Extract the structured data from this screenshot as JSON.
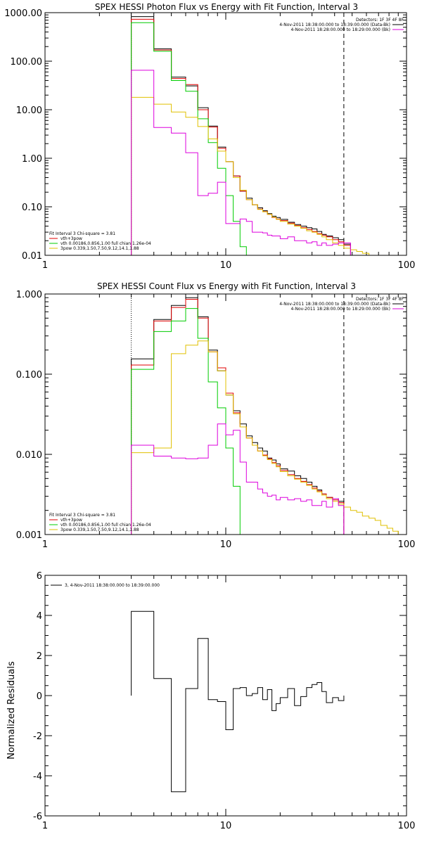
{
  "chart_data": [
    {
      "type": "line",
      "step": true,
      "title": "SPEX HESSI Photon Flux vs Energy with Fit Function, Interval 3",
      "xlabel": "",
      "ylabel": "",
      "xscale": "log",
      "yscale": "log",
      "xlim": [
        1,
        100
      ],
      "ylim": [
        0.01,
        1000
      ],
      "xticks": [
        "1",
        "10",
        "100"
      ],
      "yticks": [
        "0.01",
        "0.10",
        "1.00",
        "10.00",
        "100.00",
        "1000.00"
      ],
      "energy_edges": [
        3,
        4,
        5,
        6,
        7,
        8,
        9,
        10,
        11,
        12,
        13,
        14,
        15,
        16,
        17,
        18,
        19,
        20,
        22,
        24,
        26,
        28,
        30,
        32,
        34,
        36,
        39,
        42,
        45,
        49,
        53,
        57,
        62,
        67
      ],
      "series": [
        {
          "name": "Data",
          "color": "#000000",
          "values": [
            830,
            180,
            47,
            31,
            11,
            4.6,
            1.7,
            0.85,
            0.43,
            0.21,
            0.15,
            0.11,
            0.095,
            0.083,
            0.072,
            0.064,
            0.06,
            0.055,
            0.048,
            0.043,
            0.04,
            0.037,
            0.035,
            0.031,
            0.027,
            0.025,
            0.023,
            0.021,
            0.017,
            null,
            null,
            null,
            null
          ]
        },
        {
          "name": "vth+3pow",
          "color": "#e00000",
          "values": [
            730,
            170,
            44,
            33,
            10,
            4.4,
            1.6,
            0.85,
            0.43,
            0.21,
            0.14,
            0.11,
            0.09,
            0.08,
            0.07,
            0.06,
            0.056,
            0.052,
            0.046,
            0.041,
            0.037,
            0.034,
            0.031,
            0.028,
            0.026,
            0.024,
            0.021,
            0.019,
            0.016,
            null,
            null,
            null,
            null
          ]
        },
        {
          "name": "vth 0.00186,0.856,1.00  full chian 1.26e-04",
          "color": "#00cc00",
          "values": [
            620,
            160,
            40,
            24,
            6.5,
            2.1,
            0.62,
            0.17,
            0.05,
            0.015,
            null,
            null,
            null,
            null,
            null,
            null,
            null,
            null,
            null,
            null,
            null,
            null,
            null,
            null,
            null,
            null,
            null,
            null,
            null,
            null,
            null,
            null,
            null
          ]
        },
        {
          "name": "3pow 0.339,1.50,7.50,9.12,14.1,1.88",
          "color": "#e0c000",
          "values": [
            18,
            13,
            9,
            7,
            4.5,
            2.5,
            1.4,
            0.85,
            0.4,
            0.22,
            0.14,
            0.11,
            0.088,
            0.079,
            0.07,
            0.061,
            0.055,
            0.05,
            0.044,
            0.04,
            0.036,
            0.032,
            0.03,
            0.027,
            0.024,
            0.021,
            0.018,
            0.016,
            0.014,
            0.013,
            0.012,
            0.011,
            0.01
          ]
        },
        {
          "name": "4-Nov-2011 18:28:00.000 to 18:29:00.000 (Bk)",
          "color": "#dd00dd",
          "values": [
            65,
            4.3,
            3.3,
            1.3,
            0.17,
            0.19,
            0.32,
            0.045,
            0.045,
            0.056,
            0.05,
            0.03,
            0.03,
            0.029,
            0.026,
            0.025,
            0.025,
            0.022,
            0.024,
            0.02,
            0.02,
            0.018,
            0.019,
            0.016,
            0.018,
            0.016,
            0.017,
            0.018,
            0.018,
            null,
            null,
            null,
            null
          ]
        }
      ],
      "vlines": [
        {
          "x": 3,
          "style": "dotted"
        },
        {
          "x": 45,
          "style": "dashed"
        }
      ],
      "legend_top_right": {
        "header": "Detectors: 1F 3F 4F 8F",
        "entries": [
          {
            "text": "4-Nov-2011 18:38:00.000 to 18:39:00.000 (Data-Bk)",
            "color": "#000000"
          },
          {
            "text": "4-Nov-2011 18:28:00.000 to 18:29:00.000 (Bk)",
            "color": "#dd00dd"
          }
        ]
      },
      "legend_bottom_left": {
        "header": "Fit Interval 3   Chi-square = 3.81",
        "entries": [
          {
            "text": "vth+3pow",
            "color": "#e00000"
          },
          {
            "text": "vth 0.00186,0.856,1.00  full chian 1.26e-04",
            "color": "#00cc00"
          },
          {
            "text": "3pow 0.339,1.50,7.50,9.12,14.1,1.88",
            "color": "#e0c000"
          }
        ]
      }
    },
    {
      "type": "line",
      "step": true,
      "title": "SPEX HESSI Count Flux vs Energy with Fit Function, Interval 3",
      "xlabel": "",
      "ylabel": "",
      "xscale": "log",
      "yscale": "log",
      "xlim": [
        1,
        100
      ],
      "ylim": [
        0.001,
        1
      ],
      "xticks": [
        "1",
        "10",
        "100"
      ],
      "yticks": [
        "0.001",
        "0.010",
        "0.100",
        "1.000"
      ],
      "energy_edges": [
        3,
        4,
        5,
        6,
        7,
        8,
        9,
        10,
        11,
        12,
        13,
        14,
        15,
        16,
        17,
        18,
        19,
        20,
        22,
        24,
        26,
        28,
        30,
        32,
        34,
        36,
        39,
        42,
        45,
        49,
        53,
        57,
        62,
        67,
        72,
        78,
        84,
        90,
        96
      ],
      "series": [
        {
          "name": "Data",
          "color": "#000000",
          "values": [
            0.155,
            0.48,
            0.72,
            0.9,
            0.52,
            0.2,
            0.11,
            0.055,
            0.035,
            0.024,
            0.017,
            0.014,
            0.012,
            0.011,
            0.009,
            0.0085,
            0.0076,
            0.0066,
            0.0062,
            0.0054,
            0.005,
            0.0045,
            0.004,
            0.0036,
            0.0032,
            0.0029,
            0.0028,
            0.0026,
            null,
            null,
            null,
            null,
            null,
            null,
            null,
            null,
            null,
            null
          ]
        },
        {
          "name": "vth+3pow",
          "color": "#e00000",
          "values": [
            0.13,
            0.46,
            0.68,
            0.86,
            0.5,
            0.19,
            0.12,
            0.058,
            0.033,
            0.022,
            0.016,
            0.013,
            0.011,
            0.0098,
            0.0088,
            0.0079,
            0.0072,
            0.0063,
            0.0056,
            0.005,
            0.0046,
            0.0042,
            0.0038,
            0.0035,
            0.0032,
            0.0029,
            0.0027,
            0.0025,
            null,
            null,
            null,
            null,
            null,
            null,
            null,
            null,
            null,
            null
          ]
        },
        {
          "name": "vth 0.00186,0.856,1.00  full chian 1.26e-04",
          "color": "#00cc00",
          "values": [
            0.115,
            0.34,
            0.46,
            0.66,
            0.28,
            0.08,
            0.038,
            0.012,
            0.004,
            0.001,
            null,
            null,
            null,
            null,
            null,
            null,
            null,
            null,
            null,
            null,
            null,
            null,
            null,
            null,
            null,
            null,
            null,
            null,
            null,
            null,
            null,
            null,
            null,
            null,
            null,
            null,
            null,
            null
          ]
        },
        {
          "name": "3pow 0.339,1.50,7.50,9.12,14.1,1.88",
          "color": "#e0c000",
          "values": [
            0.0105,
            0.012,
            0.18,
            0.23,
            0.26,
            0.19,
            0.11,
            0.055,
            0.032,
            0.022,
            0.016,
            0.013,
            0.011,
            0.0096,
            0.0086,
            0.0077,
            0.007,
            0.0061,
            0.0054,
            0.0049,
            0.0045,
            0.0041,
            0.0037,
            0.0034,
            0.0031,
            0.0028,
            0.0026,
            0.0024,
            0.0022,
            0.002,
            0.0019,
            0.0017,
            0.0016,
            0.0015,
            0.0013,
            0.0012,
            0.0011,
            0.001
          ]
        },
        {
          "name": "4-Nov-2011 18:28:00.000 to 18:29:00.000 (Bk)",
          "color": "#dd00dd",
          "values": [
            0.013,
            0.0095,
            0.009,
            0.0088,
            0.009,
            0.013,
            0.024,
            0.0175,
            0.02,
            0.008,
            0.0045,
            0.0045,
            0.0037,
            0.0033,
            0.003,
            0.0031,
            0.0027,
            0.0029,
            0.0027,
            0.0028,
            0.0026,
            0.0027,
            0.0023,
            0.0023,
            0.0026,
            0.0022,
            0.0028,
            0.0023,
            null,
            null,
            null,
            null,
            null,
            null,
            null,
            null,
            null,
            null
          ]
        }
      ],
      "vlines": [
        {
          "x": 3,
          "style": "dotted"
        },
        {
          "x": 45,
          "style": "dashed"
        }
      ],
      "legend_top_right": {
        "header": "Detectors: 1F 3F 4F 8F",
        "entries": [
          {
            "text": "4-Nov-2011 18:38:00.000 to 18:39:00.000 (Data-Bk)",
            "color": "#000000"
          },
          {
            "text": "4-Nov-2011 18:28:00.000 to 18:29:00.000 (Bk)",
            "color": "#dd00dd"
          }
        ]
      },
      "legend_bottom_left": {
        "header": "Fit Interval 3   Chi-square = 3.81",
        "entries": [
          {
            "text": "vth+3pow",
            "color": "#e00000"
          },
          {
            "text": "vth 0.00186,0.856,1.00  full chian 1.26e-04",
            "color": "#00cc00"
          },
          {
            "text": "3pow 0.339,1.50,7.50,9.12,14.1,1.88",
            "color": "#e0c000"
          }
        ]
      }
    },
    {
      "type": "line",
      "step": true,
      "title": "",
      "xlabel": "",
      "ylabel": "Normalized Residuals",
      "xscale": "log",
      "yscale": "linear",
      "xlim": [
        1,
        100
      ],
      "ylim": [
        -6,
        6
      ],
      "xticks": [
        "1",
        "10",
        "100"
      ],
      "yticks": [
        "-6",
        "-4",
        "-2",
        "0",
        "2",
        "4",
        "6"
      ],
      "energy_edges": [
        3,
        4,
        5,
        6,
        7,
        8,
        9,
        10,
        11,
        12,
        13,
        14,
        15,
        16,
        17,
        18,
        19,
        20,
        22,
        24,
        26,
        28,
        30,
        32,
        34,
        36,
        39,
        42,
        45
      ],
      "series": [
        {
          "name": "3,  4-Nov-2011 18:38:00.000 to 18:39:00.000",
          "color": "#000000",
          "values": [
            4.2,
            0.85,
            -4.8,
            0.35,
            2.85,
            -0.2,
            -0.3,
            -1.7,
            0.35,
            0.4,
            0.0,
            0.1,
            0.4,
            -0.2,
            0.3,
            -0.75,
            -0.4,
            -0.1,
            0.35,
            -0.5,
            -0.05,
            0.4,
            0.55,
            0.65,
            0.2,
            -0.35,
            -0.1,
            -0.25
          ]
        }
      ],
      "legend_top_left": {
        "entries": [
          {
            "text": "3,  4-Nov-2011 18:38:00.000 to 18:39:00.000",
            "color": "#000000"
          }
        ]
      }
    }
  ]
}
